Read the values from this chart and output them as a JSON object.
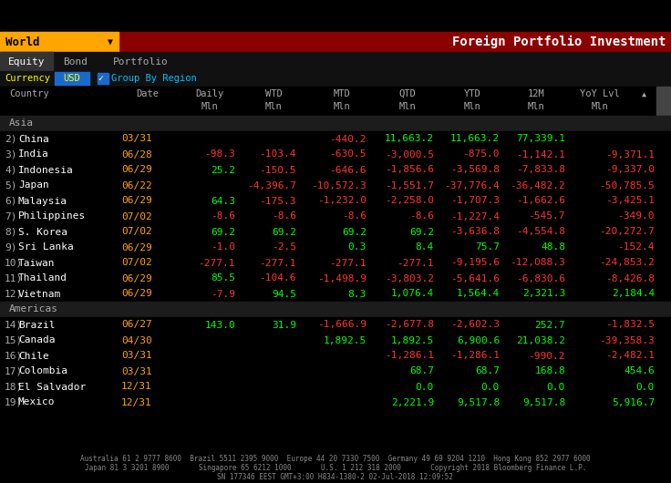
{
  "title": "Foreign Portfolio Investment",
  "bg_color": "#000000",
  "header_bar_color": "#8B0000",
  "world_box_color": "#FFA500",
  "green": "#00FF00",
  "red": "#FF3333",
  "footer_color": "#888888",
  "rows": [
    {
      "label": "Asia",
      "type": "region"
    },
    {
      "num": "2)",
      "country": "China",
      "date": "03/31",
      "daily": "",
      "wtd": "",
      "mtd": "-440.2",
      "qtd": "11,663.2",
      "ytd": "11,663.2",
      "12m": "77,339.1",
      "yoy": "",
      "colors": {
        "daily": "g",
        "wtd": "g",
        "mtd": "r",
        "qtd": "g",
        "ytd": "g",
        "12m": "g",
        "yoy": "g"
      }
    },
    {
      "num": "3)",
      "country": "India",
      "date": "06/28",
      "daily": "-98.3",
      "wtd": "-103.4",
      "mtd": "-630.5",
      "qtd": "-3,000.5",
      "ytd": "-875.0",
      "12m": "-1,142.1",
      "yoy": "-9,371.1",
      "colors": {
        "daily": "r",
        "wtd": "r",
        "mtd": "r",
        "qtd": "r",
        "ytd": "r",
        "12m": "r",
        "yoy": "r"
      }
    },
    {
      "num": "4)",
      "country": "Indonesia",
      "date": "06/29",
      "daily": "25.2",
      "wtd": "-150.5",
      "mtd": "-646.6",
      "qtd": "-1,856.6",
      "ytd": "-3,569.8",
      "12m": "-7,833.8",
      "yoy": "-9,337.0",
      "colors": {
        "daily": "g",
        "wtd": "r",
        "mtd": "r",
        "qtd": "r",
        "ytd": "r",
        "12m": "r",
        "yoy": "r"
      }
    },
    {
      "num": "5)",
      "country": "Japan",
      "date": "06/22",
      "daily": "",
      "wtd": "-4,396.7",
      "mtd": "-10,572.3",
      "qtd": "-1,551.7",
      "ytd": "-37,776.4",
      "12m": "-36,482.2",
      "yoy": "-50,785.5",
      "colors": {
        "daily": "g",
        "wtd": "r",
        "mtd": "r",
        "qtd": "r",
        "ytd": "r",
        "12m": "r",
        "yoy": "r"
      }
    },
    {
      "num": "6)",
      "country": "Malaysia",
      "date": "06/29",
      "daily": "64.3",
      "wtd": "-175.3",
      "mtd": "-1,232.0",
      "qtd": "-2,258.0",
      "ytd": "-1,707.3",
      "12m": "-1,662.6",
      "yoy": "-3,425.1",
      "colors": {
        "daily": "g",
        "wtd": "r",
        "mtd": "r",
        "qtd": "r",
        "ytd": "r",
        "12m": "r",
        "yoy": "r"
      }
    },
    {
      "num": "7)",
      "country": "Philippines",
      "date": "07/02",
      "daily": "-8.6",
      "wtd": "-8.6",
      "mtd": "-8.6",
      "qtd": "-8.6",
      "ytd": "-1,227.4",
      "12m": "-545.7",
      "yoy": "-349.0",
      "colors": {
        "daily": "r",
        "wtd": "r",
        "mtd": "r",
        "qtd": "r",
        "ytd": "r",
        "12m": "r",
        "yoy": "r"
      }
    },
    {
      "num": "8)",
      "country": "S. Korea",
      "date": "07/02",
      "daily": "69.2",
      "wtd": "69.2",
      "mtd": "69.2",
      "qtd": "69.2",
      "ytd": "-3,636.8",
      "12m": "-4,554.8",
      "yoy": "-20,272.7",
      "colors": {
        "daily": "g",
        "wtd": "g",
        "mtd": "g",
        "qtd": "g",
        "ytd": "r",
        "12m": "r",
        "yoy": "r"
      }
    },
    {
      "num": "9)",
      "country": "Sri Lanka",
      "date": "06/29",
      "daily": "-1.0",
      "wtd": "-2.5",
      "mtd": "0.3",
      "qtd": "8.4",
      "ytd": "75.7",
      "12m": "48.8",
      "yoy": "-152.4",
      "colors": {
        "daily": "r",
        "wtd": "r",
        "mtd": "g",
        "qtd": "g",
        "ytd": "g",
        "12m": "g",
        "yoy": "r"
      }
    },
    {
      "num": "10)",
      "country": "Taiwan",
      "date": "07/02",
      "daily": "-277.1",
      "wtd": "-277.1",
      "mtd": "-277.1",
      "qtd": "-277.1",
      "ytd": "-9,195.6",
      "12m": "-12,088.3",
      "yoy": "-24,853.2",
      "colors": {
        "daily": "r",
        "wtd": "r",
        "mtd": "r",
        "qtd": "r",
        "ytd": "r",
        "12m": "r",
        "yoy": "r"
      }
    },
    {
      "num": "11)",
      "country": "Thailand",
      "date": "06/29",
      "daily": "85.5",
      "wtd": "-104.6",
      "mtd": "-1,498.9",
      "qtd": "-3,803.2",
      "ytd": "-5,641.6",
      "12m": "-6,830.6",
      "yoy": "-8,426.8",
      "colors": {
        "daily": "g",
        "wtd": "r",
        "mtd": "r",
        "qtd": "r",
        "ytd": "r",
        "12m": "r",
        "yoy": "r"
      }
    },
    {
      "num": "12)",
      "country": "Vietnam",
      "date": "06/29",
      "daily": "-7.9",
      "wtd": "94.5",
      "mtd": "8.3",
      "qtd": "1,076.4",
      "ytd": "1,564.4",
      "12m": "2,321.3",
      "yoy": "2,184.4",
      "colors": {
        "daily": "r",
        "wtd": "g",
        "mtd": "g",
        "qtd": "g",
        "ytd": "g",
        "12m": "g",
        "yoy": "g"
      }
    },
    {
      "label": "Americas",
      "type": "region"
    },
    {
      "num": "14)",
      "country": "Brazil",
      "date": "06/27",
      "daily": "143.0",
      "wtd": "31.9",
      "mtd": "-1,666.9",
      "qtd": "-2,677.8",
      "ytd": "-2,602.3",
      "12m": "252.7",
      "yoy": "-1,832.5",
      "colors": {
        "daily": "g",
        "wtd": "g",
        "mtd": "r",
        "qtd": "r",
        "ytd": "r",
        "12m": "g",
        "yoy": "r"
      }
    },
    {
      "num": "15)",
      "country": "Canada",
      "date": "04/30",
      "daily": "",
      "wtd": "",
      "mtd": "1,892.5",
      "qtd": "1,892.5",
      "ytd": "6,900.6",
      "12m": "21,038.2",
      "yoy": "-39,358.3",
      "colors": {
        "daily": "g",
        "wtd": "g",
        "mtd": "g",
        "qtd": "g",
        "ytd": "g",
        "12m": "g",
        "yoy": "r"
      }
    },
    {
      "num": "16)",
      "country": "Chile",
      "date": "03/31",
      "daily": "",
      "wtd": "",
      "mtd": "",
      "qtd": "-1,286.1",
      "ytd": "-1,286.1",
      "12m": "-990.2",
      "yoy": "-2,482.1",
      "colors": {
        "daily": "g",
        "wtd": "g",
        "mtd": "g",
        "qtd": "r",
        "ytd": "r",
        "12m": "r",
        "yoy": "r"
      }
    },
    {
      "num": "17)",
      "country": "Colombia",
      "date": "03/31",
      "daily": "",
      "wtd": "",
      "mtd": "",
      "qtd": "68.7",
      "ytd": "68.7",
      "12m": "168.8",
      "yoy": "454.6",
      "colors": {
        "daily": "g",
        "wtd": "g",
        "mtd": "g",
        "qtd": "g",
        "ytd": "g",
        "12m": "g",
        "yoy": "g"
      }
    },
    {
      "num": "18)",
      "country": "El Salvador",
      "date": "12/31",
      "daily": "",
      "wtd": "",
      "mtd": "",
      "qtd": "0.0",
      "ytd": "0.0",
      "12m": "0.0",
      "yoy": "0.0",
      "colors": {
        "daily": "g",
        "wtd": "g",
        "mtd": "g",
        "qtd": "g",
        "ytd": "g",
        "12m": "g",
        "yoy": "g"
      }
    },
    {
      "num": "19)",
      "country": "Mexico",
      "date": "12/31",
      "daily": "",
      "wtd": "",
      "mtd": "",
      "qtd": "2,221.9",
      "ytd": "9,517.8",
      "12m": "9,517.8",
      "yoy": "5,916.7",
      "colors": {
        "daily": "g",
        "wtd": "g",
        "mtd": "g",
        "qtd": "g",
        "ytd": "g",
        "12m": "g",
        "yoy": "g"
      }
    }
  ],
  "footer1": "Australia 61 2 9777 8600  Brazil 5511 2395 9000  Europe 44 20 7330 7500  Germany 49 69 9204 1210  Hong Kong 852 2977 6000",
  "footer2": "Japan 81 3 3201 8900       Singapore 65 6212 1000       U.S. 1 212 318 2000       Copyright 2018 Bloomberg Finance L.P.",
  "footer3": "SN 177346 EEST GMT+3:00 H834-1380-2 02-Jul-2018 12:09:52"
}
